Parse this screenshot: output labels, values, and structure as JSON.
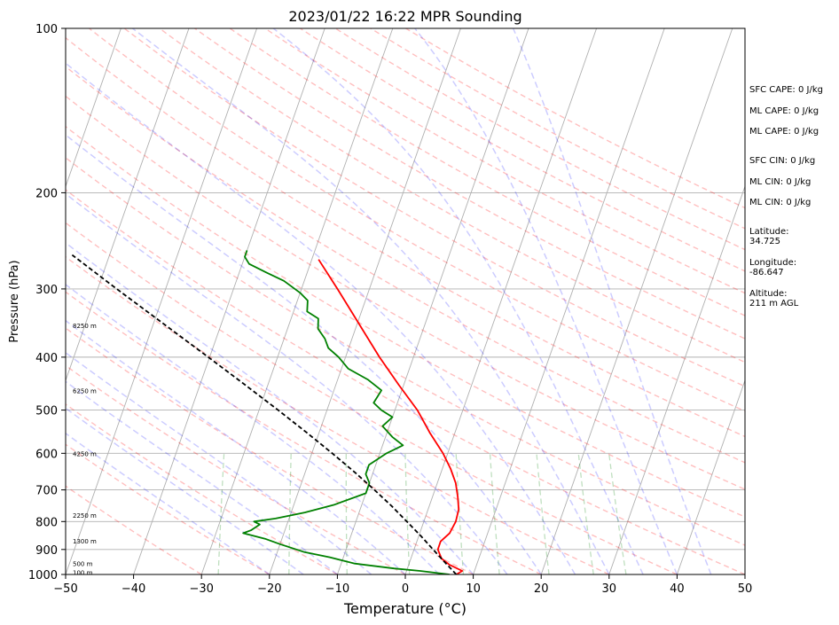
{
  "title": "2023/01/22 16:22 MPR Sounding",
  "chart_data": {
    "type": "skew-t",
    "title": "2023/01/22 16:22 MPR Sounding",
    "xlabel": "Temperature (°C)",
    "ylabel": "Pressure (hPa)",
    "xlim": [
      -50,
      50
    ],
    "ylim": [
      1000,
      100
    ],
    "y_scale": "log",
    "x_ticks": [
      "−50",
      "−40",
      "−30",
      "−20",
      "−10",
      "0",
      "10",
      "20",
      "30",
      "40",
      "50"
    ],
    "y_ticks": [
      "100",
      "200",
      "300",
      "400",
      "500",
      "600",
      "700",
      "800",
      "900",
      "1000"
    ],
    "isobars_hpa": [
      200,
      300,
      400,
      500,
      600,
      700,
      800,
      900
    ],
    "height_labels": [
      {
        "p": 350,
        "text": "8250 m"
      },
      {
        "p": 460,
        "text": "6250 m"
      },
      {
        "p": 600,
        "text": "4250 m"
      },
      {
        "p": 778,
        "text": "2250 m"
      },
      {
        "p": 868,
        "text": "1300 m"
      },
      {
        "p": 955,
        "text": "500 m"
      },
      {
        "p": 990,
        "text": "100 m"
      }
    ],
    "series": [
      {
        "color": "#ff0000",
        "points": [
          [
            1000,
            7.5
          ],
          [
            985,
            8.2
          ],
          [
            960,
            6.0
          ],
          [
            935,
            4.5
          ],
          [
            900,
            3.5
          ],
          [
            870,
            3.5
          ],
          [
            840,
            4.4
          ],
          [
            800,
            4.7
          ],
          [
            760,
            4.5
          ],
          [
            720,
            3.7
          ],
          [
            680,
            2.7
          ],
          [
            640,
            1.2
          ],
          [
            600,
            -0.7
          ],
          [
            550,
            -3.7
          ],
          [
            500,
            -6.7
          ],
          [
            450,
            -10.7
          ],
          [
            400,
            -15.0
          ],
          [
            350,
            -19.5
          ],
          [
            300,
            -24.7
          ],
          [
            265,
            -29.0
          ]
        ]
      },
      {
        "color": "#008000",
        "points": [
          [
            1000,
            6.5
          ],
          [
            985,
            2.0
          ],
          [
            975,
            -2.0
          ],
          [
            955,
            -8.0
          ],
          [
            930,
            -12.0
          ],
          [
            910,
            -16.0
          ],
          [
            880,
            -20.0
          ],
          [
            860,
            -22.5
          ],
          [
            840,
            -26.0
          ],
          [
            830,
            -25.0
          ],
          [
            810,
            -24.0
          ],
          [
            800,
            -25.0
          ],
          [
            790,
            -22.0
          ],
          [
            770,
            -18.0
          ],
          [
            745,
            -14.0
          ],
          [
            710,
            -10.0
          ],
          [
            680,
            -10.0
          ],
          [
            655,
            -11.0
          ],
          [
            630,
            -11.0
          ],
          [
            600,
            -9.0
          ],
          [
            580,
            -7.0
          ],
          [
            560,
            -9.0
          ],
          [
            535,
            -11.0
          ],
          [
            515,
            -10.0
          ],
          [
            500,
            -12.0
          ],
          [
            485,
            -13.5
          ],
          [
            460,
            -13.0
          ],
          [
            440,
            -15.5
          ],
          [
            420,
            -19.0
          ],
          [
            400,
            -21.0
          ],
          [
            385,
            -23.0
          ],
          [
            370,
            -24.0
          ],
          [
            355,
            -25.5
          ],
          [
            340,
            -26.0
          ],
          [
            330,
            -28.0
          ],
          [
            315,
            -28.5
          ],
          [
            305,
            -30.0
          ],
          [
            290,
            -33.0
          ],
          [
            280,
            -36.0
          ],
          [
            270,
            -39.0
          ],
          [
            262,
            -40.0
          ],
          [
            255,
            -40.0
          ]
        ]
      },
      {
        "color": "#000000",
        "dashed": true,
        "points": [
          [
            1000,
            7.5
          ],
          [
            950,
            5.2
          ],
          [
            900,
            2.8
          ],
          [
            850,
            0.3
          ],
          [
            800,
            -2.5
          ],
          [
            750,
            -5.5
          ],
          [
            700,
            -8.9
          ],
          [
            650,
            -12.7
          ],
          [
            600,
            -17.0
          ],
          [
            550,
            -21.8
          ],
          [
            500,
            -27.2
          ],
          [
            450,
            -33.3
          ],
          [
            400,
            -40.2
          ],
          [
            350,
            -48.1
          ],
          [
            300,
            -57.2
          ],
          [
            260,
            -65.5
          ]
        ]
      }
    ],
    "indices": {
      "sfc_cape": "SFC CAPE: 0 J/kg",
      "ml_cape_1": "ML CAPE: 0 J/kg",
      "ml_cape_2": "ML CAPE: 0 J/kg",
      "sfc_cin": "SFC CIN: 0 J/kg",
      "ml_cin_1": "ML CIN: 0 J/kg",
      "ml_cin_2": "ML CIN: 0 J/kg",
      "latitude_label": "Latitude:",
      "latitude": "34.725",
      "longitude_label": "Longitude:",
      "longitude": "-86.647",
      "altitude_label": "Altitude:",
      "altitude": "211 m AGL"
    }
  }
}
